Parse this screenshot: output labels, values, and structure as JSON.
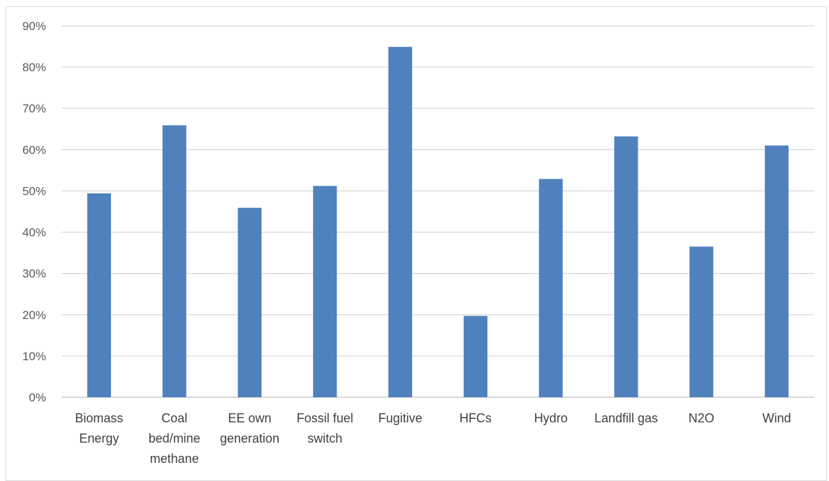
{
  "chart_data": {
    "type": "bar",
    "title": "",
    "xlabel": "",
    "ylabel": "",
    "ylim": [
      0,
      0.9
    ],
    "y_ticks": [
      "0%",
      "10%",
      "20%",
      "30%",
      "40%",
      "50%",
      "60%",
      "70%",
      "80%",
      "90%"
    ],
    "grid": true,
    "legend": "none",
    "bar_color": "#4f81bd",
    "categories": [
      [
        "Biomass",
        "Energy"
      ],
      [
        "Coal",
        "bed/mine",
        "methane"
      ],
      [
        "EE own",
        "generation"
      ],
      [
        "Fossil fuel",
        "switch"
      ],
      [
        "Fugitive"
      ],
      [
        "HFCs"
      ],
      [
        "Hydro"
      ],
      [
        "Landfill gas"
      ],
      [
        "N2O"
      ],
      [
        "Wind"
      ]
    ],
    "values": [
      0.494,
      0.659,
      0.459,
      0.512,
      0.849,
      0.197,
      0.529,
      0.632,
      0.365,
      0.61
    ]
  }
}
